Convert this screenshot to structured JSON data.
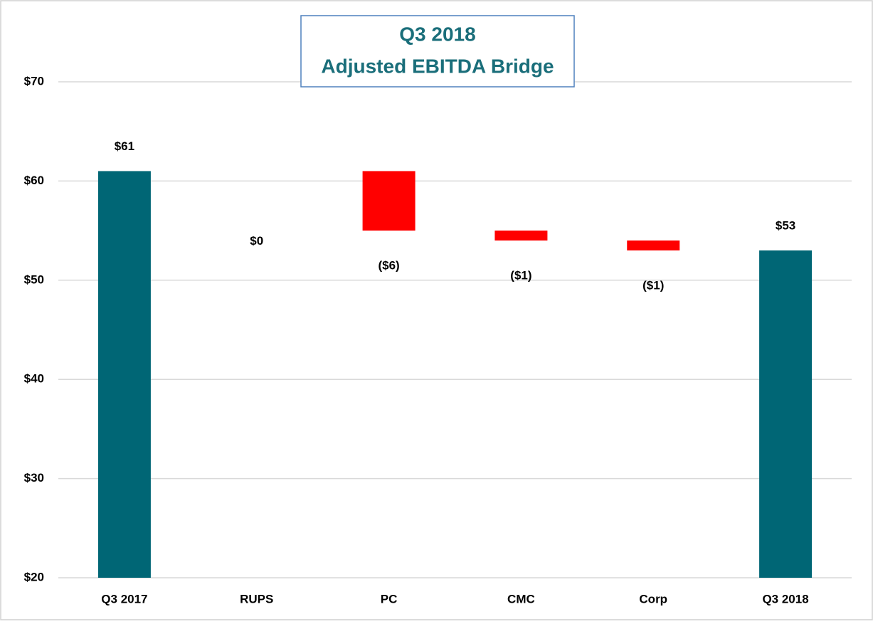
{
  "chart_data": {
    "type": "waterfall",
    "title": [
      "Q3 2018",
      "Adjusted EBITDA Bridge"
    ],
    "categories": [
      "Q3 2017",
      "RUPS",
      "PC",
      "CMC",
      "Corp",
      "Q3 2018"
    ],
    "values": [
      61,
      0,
      -6,
      -1,
      -1,
      53
    ],
    "value_labels": [
      "$61",
      "$0",
      "($6)",
      "($1)",
      "($1)",
      "$53"
    ],
    "measure": [
      "absolute",
      "relative",
      "relative",
      "relative",
      "relative",
      "absolute"
    ],
    "total_color": "#006675",
    "decrease_color": "#ff0000",
    "increase_color": "#70ad47",
    "ylim": [
      20,
      70
    ],
    "yticks": [
      {
        "value": 20,
        "label": "$20"
      },
      {
        "value": 30,
        "label": "$30"
      },
      {
        "value": 40,
        "label": "$40"
      },
      {
        "value": 50,
        "label": "$50"
      },
      {
        "value": 60,
        "label": "$60"
      },
      {
        "value": 70,
        "label": "$70"
      }
    ],
    "grid": true
  }
}
